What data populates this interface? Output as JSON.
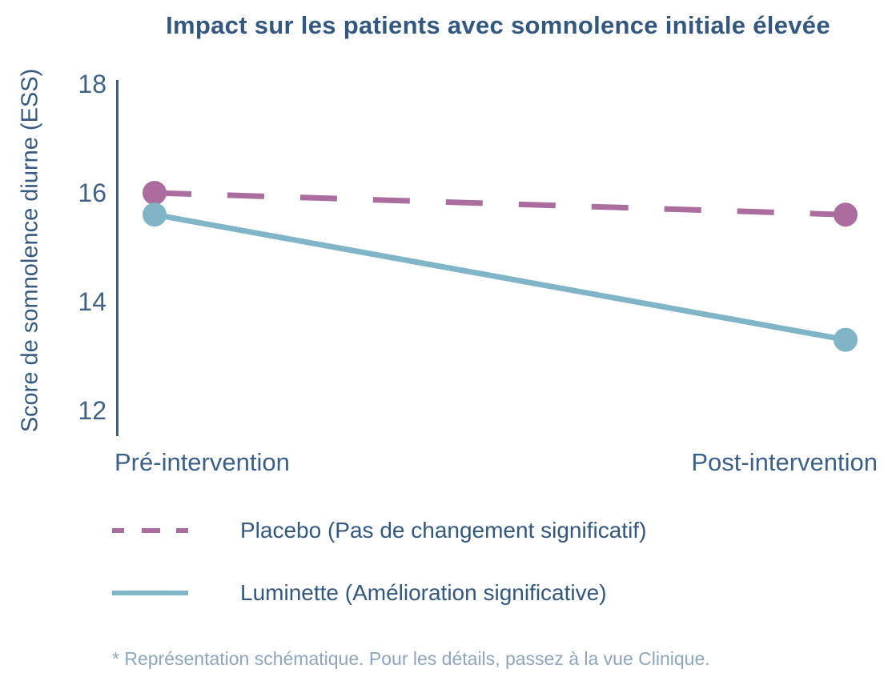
{
  "title": "Impact sur les patients avec somnolence initiale élevée",
  "y_axis": {
    "label": "Score de somnolence diurne (ESS)",
    "ticks": [
      "18",
      "16",
      "14",
      "12"
    ]
  },
  "x_axis": {
    "labels": [
      "Pré-intervention",
      "Post-intervention"
    ]
  },
  "legend": {
    "items": [
      {
        "label": "Placebo (Pas de changement significatif)",
        "color": "#ab6d9e",
        "line_style": "dashed"
      },
      {
        "label": "Luminette (Amélioration significative)",
        "color": "#7fb5c7",
        "line_style": "solid"
      }
    ]
  },
  "footnote": "* Représentation schématique. Pour les détails, passez à la vue Clinique.",
  "colors": {
    "title_text": "#33587f",
    "axis_text": "#3d6187",
    "axis_line": "#3c6080",
    "legend_text": "#33587f",
    "footnote_text": "#8ea5bf",
    "placebo": "#ab6d9e",
    "luminette": "#7fb5c7"
  },
  "chart_data": {
    "type": "line",
    "title": "Impact sur les patients avec somnolence initiale élevée",
    "xlabel": "",
    "ylabel": "Score de somnolence diurne (ESS)",
    "categories": [
      "Pré-intervention",
      "Post-intervention"
    ],
    "series": [
      {
        "name": "Placebo (Pas de changement significatif)",
        "values": [
          16.0,
          15.6
        ],
        "color": "#ab6d9e",
        "style": "dashed"
      },
      {
        "name": "Luminette (Amélioration significative)",
        "values": [
          15.6,
          13.3
        ],
        "color": "#7fb5c7",
        "style": "solid"
      }
    ],
    "yticks": [
      18,
      16,
      14,
      12
    ],
    "ylim": [
      11.5,
      18.1
    ],
    "grid": false,
    "legend_position": "bottom",
    "annotation": "* Représentation schématique. Pour les détails, passez à la vue Clinique."
  }
}
